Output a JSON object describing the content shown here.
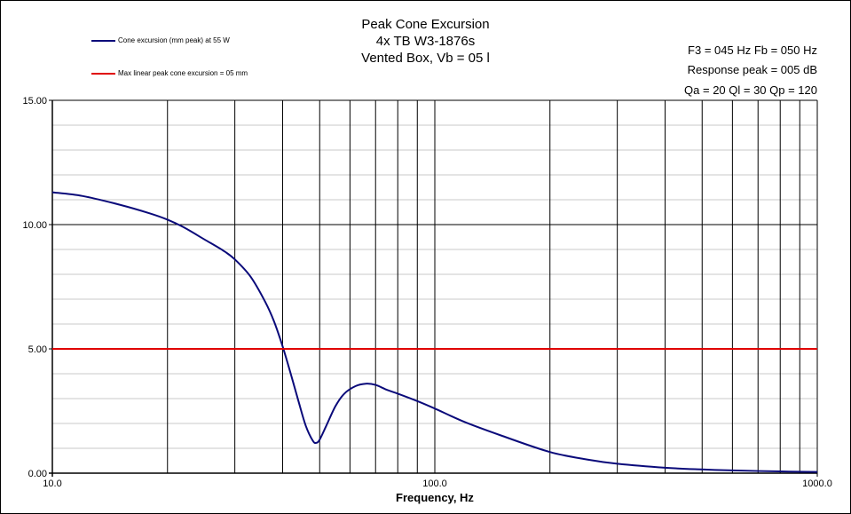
{
  "chart_data": {
    "type": "line",
    "title": [
      "Peak Cone Excursion",
      "4x TB W3-1876s",
      "Vented Box, Vb = 05 l"
    ],
    "info": [
      "F3 = 045  Hz   Fb = 050  Hz",
      "Response peak = 005  dB",
      "Qa = 20   Ql = 30   Qp = 120"
    ],
    "xlabel": "Frequency, Hz",
    "ylabel": "",
    "x_scale": "log",
    "xlim": [
      10,
      1000
    ],
    "ylim": [
      0,
      15
    ],
    "x_ticks": [
      10,
      100,
      1000
    ],
    "x_tick_labels": [
      "10.0",
      "100.0",
      "1000.0"
    ],
    "y_ticks": [
      0,
      5,
      10,
      15
    ],
    "y_tick_labels": [
      "0.00",
      "5.00",
      "10.00",
      "15.00"
    ],
    "grid": true,
    "legend_position": "top-left",
    "series": [
      {
        "name": "Cone excursion (mm peak) at 55 W",
        "color": "#0a0a7a",
        "x": [
          10,
          12,
          15,
          18,
          20,
          22,
          25,
          28,
          30,
          33,
          36,
          38,
          40,
          42,
          44,
          46,
          48,
          49,
          50,
          52,
          55,
          58,
          62,
          66,
          70,
          75,
          80,
          90,
          100,
          120,
          150,
          200,
          250,
          300,
          400,
          500,
          600,
          800,
          1000
        ],
        "y": [
          11.3,
          11.15,
          10.8,
          10.45,
          10.2,
          9.9,
          9.4,
          8.95,
          8.6,
          7.9,
          6.9,
          6.1,
          5.1,
          4.0,
          2.9,
          1.9,
          1.3,
          1.22,
          1.35,
          1.9,
          2.7,
          3.2,
          3.5,
          3.6,
          3.55,
          3.35,
          3.2,
          2.9,
          2.6,
          2.05,
          1.5,
          0.85,
          0.55,
          0.38,
          0.22,
          0.15,
          0.11,
          0.07,
          0.05
        ]
      },
      {
        "name": "Max linear peak cone excursion = 05 mm",
        "color": "#e00000",
        "x": [
          10,
          1000
        ],
        "y": [
          5,
          5
        ]
      }
    ]
  }
}
